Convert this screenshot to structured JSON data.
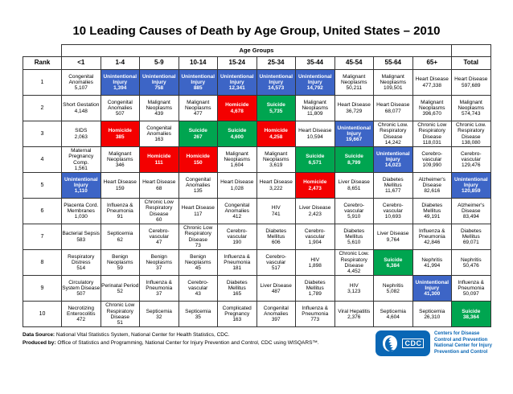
{
  "page": {
    "title": "10 Leading Causes of Death by Age Group, United States – 2010"
  },
  "colors": {
    "unintentional_injury_blue": "#3d65c6",
    "homicide_red": "#f40000",
    "suicide_green": "#00a550",
    "logo_blue": "#0a67b5"
  },
  "chart_data": {
    "type": "table",
    "title": "10 Leading Causes of Death by Age Group, United States – 2010",
    "super_header": "Age Groups",
    "rank_header": "Rank",
    "columns": [
      "<1",
      "1-4",
      "5-9",
      "10-14",
      "15-24",
      "25-34",
      "35-44",
      "45-54",
      "55-64",
      "65+",
      "Total"
    ],
    "rows": [
      {
        "rank": "1",
        "cells": [
          {
            "cause": "Congenital Anomalies",
            "value": "5,107",
            "color": "none"
          },
          {
            "cause": "Unintentional Injury",
            "value": "1,394",
            "color": "blue"
          },
          {
            "cause": "Unintentional Injury",
            "value": "758",
            "color": "blue"
          },
          {
            "cause": "Unintentional Injury",
            "value": "885",
            "color": "blue"
          },
          {
            "cause": "Unintentional Injury",
            "value": "12,341",
            "color": "blue"
          },
          {
            "cause": "Unintentional Injury",
            "value": "14,573",
            "color": "blue"
          },
          {
            "cause": "Unintentional Injury",
            "value": "14,792",
            "color": "blue"
          },
          {
            "cause": "Malignant Neoplasms",
            "value": "50,211",
            "color": "none"
          },
          {
            "cause": "Malignant Neoplasms",
            "value": "109,501",
            "color": "none"
          },
          {
            "cause": "Heart Disease",
            "value": "477,338",
            "color": "none"
          },
          {
            "cause": "Heart Disease",
            "value": "597,689",
            "color": "none"
          }
        ]
      },
      {
        "rank": "2",
        "cells": [
          {
            "cause": "Short Gestation",
            "value": "4,148",
            "color": "none"
          },
          {
            "cause": "Congenital Anomalies",
            "value": "507",
            "color": "none"
          },
          {
            "cause": "Malignant Neoplasms",
            "value": "439",
            "color": "none"
          },
          {
            "cause": "Malignant Neoplasms",
            "value": "477",
            "color": "none"
          },
          {
            "cause": "Homicide",
            "value": "4,678",
            "color": "red"
          },
          {
            "cause": "Suicide",
            "value": "5,735",
            "color": "green"
          },
          {
            "cause": "Malignant Neoplasms",
            "value": "11,809",
            "color": "none"
          },
          {
            "cause": "Heart Disease",
            "value": "36,729",
            "color": "none"
          },
          {
            "cause": "Heart Disease",
            "value": "68,077",
            "color": "none"
          },
          {
            "cause": "Malignant Neoplasms",
            "value": "396,670",
            "color": "none"
          },
          {
            "cause": "Malignant Neoplasms",
            "value": "574,743",
            "color": "none"
          }
        ]
      },
      {
        "rank": "3",
        "cells": [
          {
            "cause": "SIDS",
            "value": "2,063",
            "color": "none"
          },
          {
            "cause": "Homicide",
            "value": "385",
            "color": "red"
          },
          {
            "cause": "Congenital Anomalies",
            "value": "163",
            "color": "none"
          },
          {
            "cause": "Suicide",
            "value": "267",
            "color": "green"
          },
          {
            "cause": "Suicide",
            "value": "4,600",
            "color": "green"
          },
          {
            "cause": "Homicide",
            "value": "4,258",
            "color": "red"
          },
          {
            "cause": "Heart Disease",
            "value": "10,594",
            "color": "none"
          },
          {
            "cause": "Unintentional Injury",
            "value": "19,667",
            "color": "blue"
          },
          {
            "cause": "Chronic Low. Respiratory Disease",
            "value": "14,242",
            "color": "none"
          },
          {
            "cause": "Chronic Low Respiratory Disease",
            "value": "118,031",
            "color": "none"
          },
          {
            "cause": "Chronic Low. Respiratory Disease",
            "value": "138,080",
            "color": "none"
          }
        ]
      },
      {
        "rank": "4",
        "cells": [
          {
            "cause": "Maternal Pregnancy Comp.",
            "value": "1,561",
            "color": "none"
          },
          {
            "cause": "Malignant Neoplasms",
            "value": "346",
            "color": "none"
          },
          {
            "cause": "Homicide",
            "value": "111",
            "color": "red"
          },
          {
            "cause": "Homicide",
            "value": "150",
            "color": "red"
          },
          {
            "cause": "Malignant Neoplasms",
            "value": "1,604",
            "color": "none"
          },
          {
            "cause": "Malignant Neoplasms",
            "value": "3,619",
            "color": "none"
          },
          {
            "cause": "Suicide",
            "value": "6,571",
            "color": "green"
          },
          {
            "cause": "Suicide",
            "value": "8,799",
            "color": "green"
          },
          {
            "cause": "Unintentional Injury",
            "value": "14,023",
            "color": "blue"
          },
          {
            "cause": "Cerebro-vascular",
            "value": "109,990",
            "color": "none"
          },
          {
            "cause": "Cerebro-vascular",
            "value": "129,476",
            "color": "none"
          }
        ]
      },
      {
        "rank": "5",
        "cells": [
          {
            "cause": "Unintentional Injury",
            "value": "1,110",
            "color": "blue"
          },
          {
            "cause": "Heart Disease",
            "value": "159",
            "color": "none"
          },
          {
            "cause": "Heart Disease",
            "value": "68",
            "color": "none"
          },
          {
            "cause": "Congenital Anomalies",
            "value": "135",
            "color": "none"
          },
          {
            "cause": "Heart Disease",
            "value": "1,028",
            "color": "none"
          },
          {
            "cause": "Heart Disease",
            "value": "3,222",
            "color": "none"
          },
          {
            "cause": "Homicide",
            "value": "2,473",
            "color": "red"
          },
          {
            "cause": "Liver Disease",
            "value": "8,651",
            "color": "none"
          },
          {
            "cause": "Diabetes Mellitus",
            "value": "11,677",
            "color": "none"
          },
          {
            "cause": "Alzheimer's Disease",
            "value": "82,616",
            "color": "none"
          },
          {
            "cause": "Unintentional Injury",
            "value": "120,859",
            "color": "blue"
          }
        ]
      },
      {
        "rank": "6",
        "cells": [
          {
            "cause": "Placenta Cord. Membranes",
            "value": "1,030",
            "color": "none"
          },
          {
            "cause": "Influenza & Pneumonia",
            "value": "91",
            "color": "none"
          },
          {
            "cause": "Chronic Low Respiratory Disease",
            "value": "60",
            "color": "none"
          },
          {
            "cause": "Heart Disease",
            "value": "117",
            "color": "none"
          },
          {
            "cause": "Congenital Anomalies",
            "value": "412",
            "color": "none"
          },
          {
            "cause": "HIV",
            "value": "741",
            "color": "none"
          },
          {
            "cause": "Liver Disease",
            "value": "2,423",
            "color": "none"
          },
          {
            "cause": "Cerebro-vascular",
            "value": "5,910",
            "color": "none"
          },
          {
            "cause": "Cerebro-vascular",
            "value": "10,693",
            "color": "none"
          },
          {
            "cause": "Diabetes Mellitus",
            "value": "49,191",
            "color": "none"
          },
          {
            "cause": "Alzheimer's Disease",
            "value": "83,494",
            "color": "none"
          }
        ]
      },
      {
        "rank": "7",
        "cells": [
          {
            "cause": "Bacterial Sepsis",
            "value": "583",
            "color": "none"
          },
          {
            "cause": "Septicemia",
            "value": "62",
            "color": "none"
          },
          {
            "cause": "Cerebro-vascular",
            "value": "47",
            "color": "none"
          },
          {
            "cause": "Chronic Low Respiratory Disease",
            "value": "73",
            "color": "none"
          },
          {
            "cause": "Cerebro-vascular",
            "value": "190",
            "color": "none"
          },
          {
            "cause": "Diabetes Mellitus",
            "value": "606",
            "color": "none"
          },
          {
            "cause": "Cerebro-vascular",
            "value": "1,904",
            "color": "none"
          },
          {
            "cause": "Diabetes Mellitus",
            "value": "5,610",
            "color": "none"
          },
          {
            "cause": "Liver Disease",
            "value": "9,764",
            "color": "none"
          },
          {
            "cause": "Influenza & Pneumonia",
            "value": "42,846",
            "color": "none"
          },
          {
            "cause": "Diabetes Mellitus",
            "value": "69,071",
            "color": "none"
          }
        ]
      },
      {
        "rank": "8",
        "cells": [
          {
            "cause": "Respiratory Distress",
            "value": "514",
            "color": "none"
          },
          {
            "cause": "Benign Neoplasms",
            "value": "59",
            "color": "none"
          },
          {
            "cause": "Benign Neoplasms",
            "value": "37",
            "color": "none"
          },
          {
            "cause": "Benign Neoplasms",
            "value": "45",
            "color": "none"
          },
          {
            "cause": "Influenza & Pneumonia",
            "value": "181",
            "color": "none"
          },
          {
            "cause": "Cerebro-vascular",
            "value": "517",
            "color": "none"
          },
          {
            "cause": "HIV",
            "value": "1,898",
            "color": "none"
          },
          {
            "cause": "Chronic Low. Respiratory Disease",
            "value": "4,452",
            "color": "none"
          },
          {
            "cause": "Suicide",
            "value": "6,384",
            "color": "green"
          },
          {
            "cause": "Nephritis",
            "value": "41,994",
            "color": "none"
          },
          {
            "cause": "Nephritis",
            "value": "50,476",
            "color": "none"
          }
        ]
      },
      {
        "rank": "9",
        "cells": [
          {
            "cause": "Circulatory System Disease",
            "value": "507",
            "color": "none"
          },
          {
            "cause": "Perinatal Period",
            "value": "52",
            "color": "none"
          },
          {
            "cause": "Influenza & Pneumonia",
            "value": "37",
            "color": "none"
          },
          {
            "cause": "Cerebro-vascular",
            "value": "43",
            "color": "none"
          },
          {
            "cause": "Diabetes Mellitus",
            "value": "165",
            "color": "none"
          },
          {
            "cause": "Liver Disease",
            "value": "487",
            "color": "none"
          },
          {
            "cause": "Diabetes Mellitus",
            "value": "1,789",
            "color": "none"
          },
          {
            "cause": "HIV",
            "value": "3,123",
            "color": "none"
          },
          {
            "cause": "Nephritis",
            "value": "5,082",
            "color": "none"
          },
          {
            "cause": "Unintentional Injury",
            "value": "41,300",
            "color": "blue"
          },
          {
            "cause": "Influenza & Pneumonia",
            "value": "50,097",
            "color": "none"
          }
        ]
      },
      {
        "rank": "10",
        "cells": [
          {
            "cause": "Necrotizing Enterocolitis",
            "value": "472",
            "color": "none"
          },
          {
            "cause": "Chronic Low Respiratory Disease",
            "value": "51",
            "color": "none"
          },
          {
            "cause": "Septicemia",
            "value": "32",
            "color": "none"
          },
          {
            "cause": "Septicemia",
            "value": "35",
            "color": "none"
          },
          {
            "cause": "Complicated Pregnancy",
            "value": "163",
            "color": "none"
          },
          {
            "cause": "Congenital Anomalies",
            "value": "397",
            "color": "none"
          },
          {
            "cause": "Influenza & Pneumonia",
            "value": "773",
            "color": "none"
          },
          {
            "cause": "Viral Hepatitis",
            "value": "2,376",
            "color": "none"
          },
          {
            "cause": "Septicemia",
            "value": "4,604",
            "color": "none"
          },
          {
            "cause": "Septicemia",
            "value": "26,310",
            "color": "none"
          },
          {
            "cause": "Suicide",
            "value": "38,364",
            "color": "green"
          }
        ]
      }
    ]
  },
  "footer": {
    "data_source_label": "Data Source:",
    "data_source_text": " National Vital Statistics System, National Center for Health Statistics, CDC.",
    "produced_by_label": "Produced by:",
    "produced_by_text": " Office of Statistics and Programming, National Center for Injury Prevention and Control, CDC using WISQARS™."
  },
  "logo": {
    "acronym": "CDC",
    "org_lines": [
      "Centers for Disease",
      "Control and Prevention",
      "National Center for Injury",
      "Prevention and Control"
    ]
  }
}
